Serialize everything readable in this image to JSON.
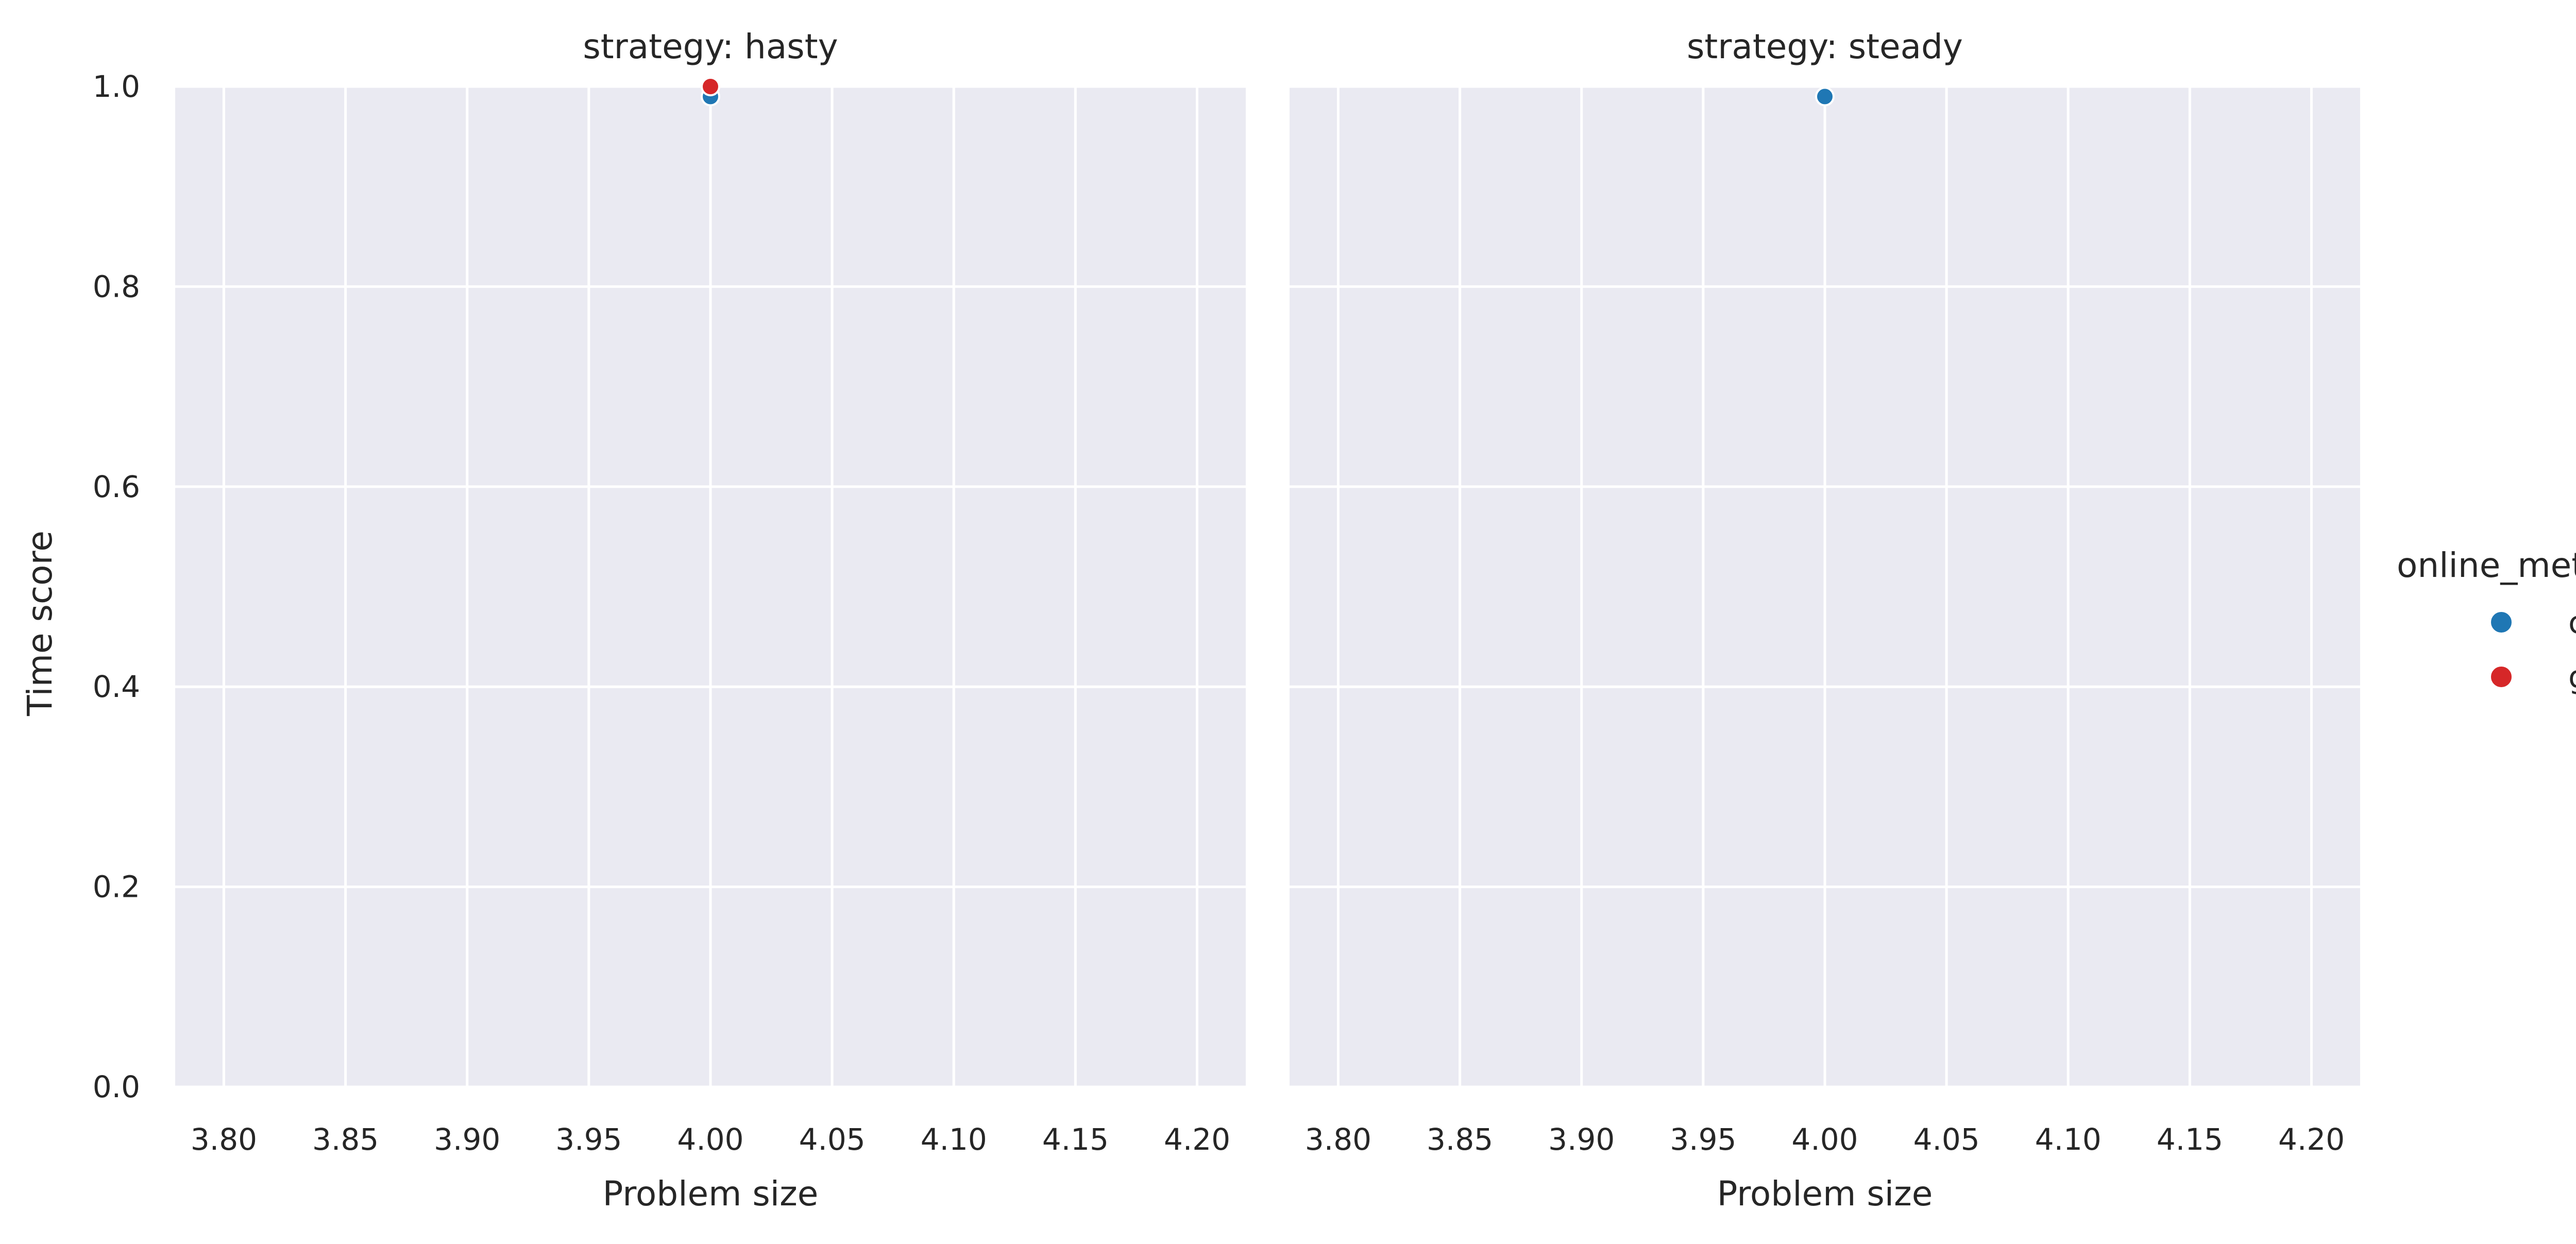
{
  "chart_data": {
    "type": "scatter",
    "facet_label": "strategy",
    "facets": [
      {
        "title": "strategy: hasty",
        "series": [
          {
            "name": "cf",
            "points": [
              {
                "x": 4.0,
                "y": 0.99
              }
            ]
          },
          {
            "name": "gf",
            "points": [
              {
                "x": 4.0,
                "y": 1.0
              }
            ]
          }
        ]
      },
      {
        "title": "strategy: steady",
        "series": [
          {
            "name": "cf",
            "points": [
              {
                "x": 4.0,
                "y": 0.99
              }
            ]
          }
        ]
      }
    ],
    "xlabel": "Problem size",
    "ylabel": "Time score",
    "xlim": [
      3.78,
      4.22
    ],
    "ylim": [
      0.0,
      1.0
    ],
    "x_ticks": [
      "3.80",
      "3.85",
      "3.90",
      "3.95",
      "4.00",
      "4.05",
      "4.10",
      "4.15",
      "4.20"
    ],
    "y_ticks": [
      "0.0",
      "0.2",
      "0.4",
      "0.6",
      "0.8",
      "1.0"
    ],
    "grid": true,
    "legend": {
      "title": "online_method",
      "placement": "right",
      "entries": [
        {
          "name": "cf",
          "color": "#1f77b4"
        },
        {
          "name": "gf",
          "color": "#d62728"
        }
      ]
    },
    "colors": {
      "panel_background": "#eaeaf2",
      "grid": "#ffffff",
      "cf": "#1f77b4",
      "gf": "#d62728"
    }
  }
}
